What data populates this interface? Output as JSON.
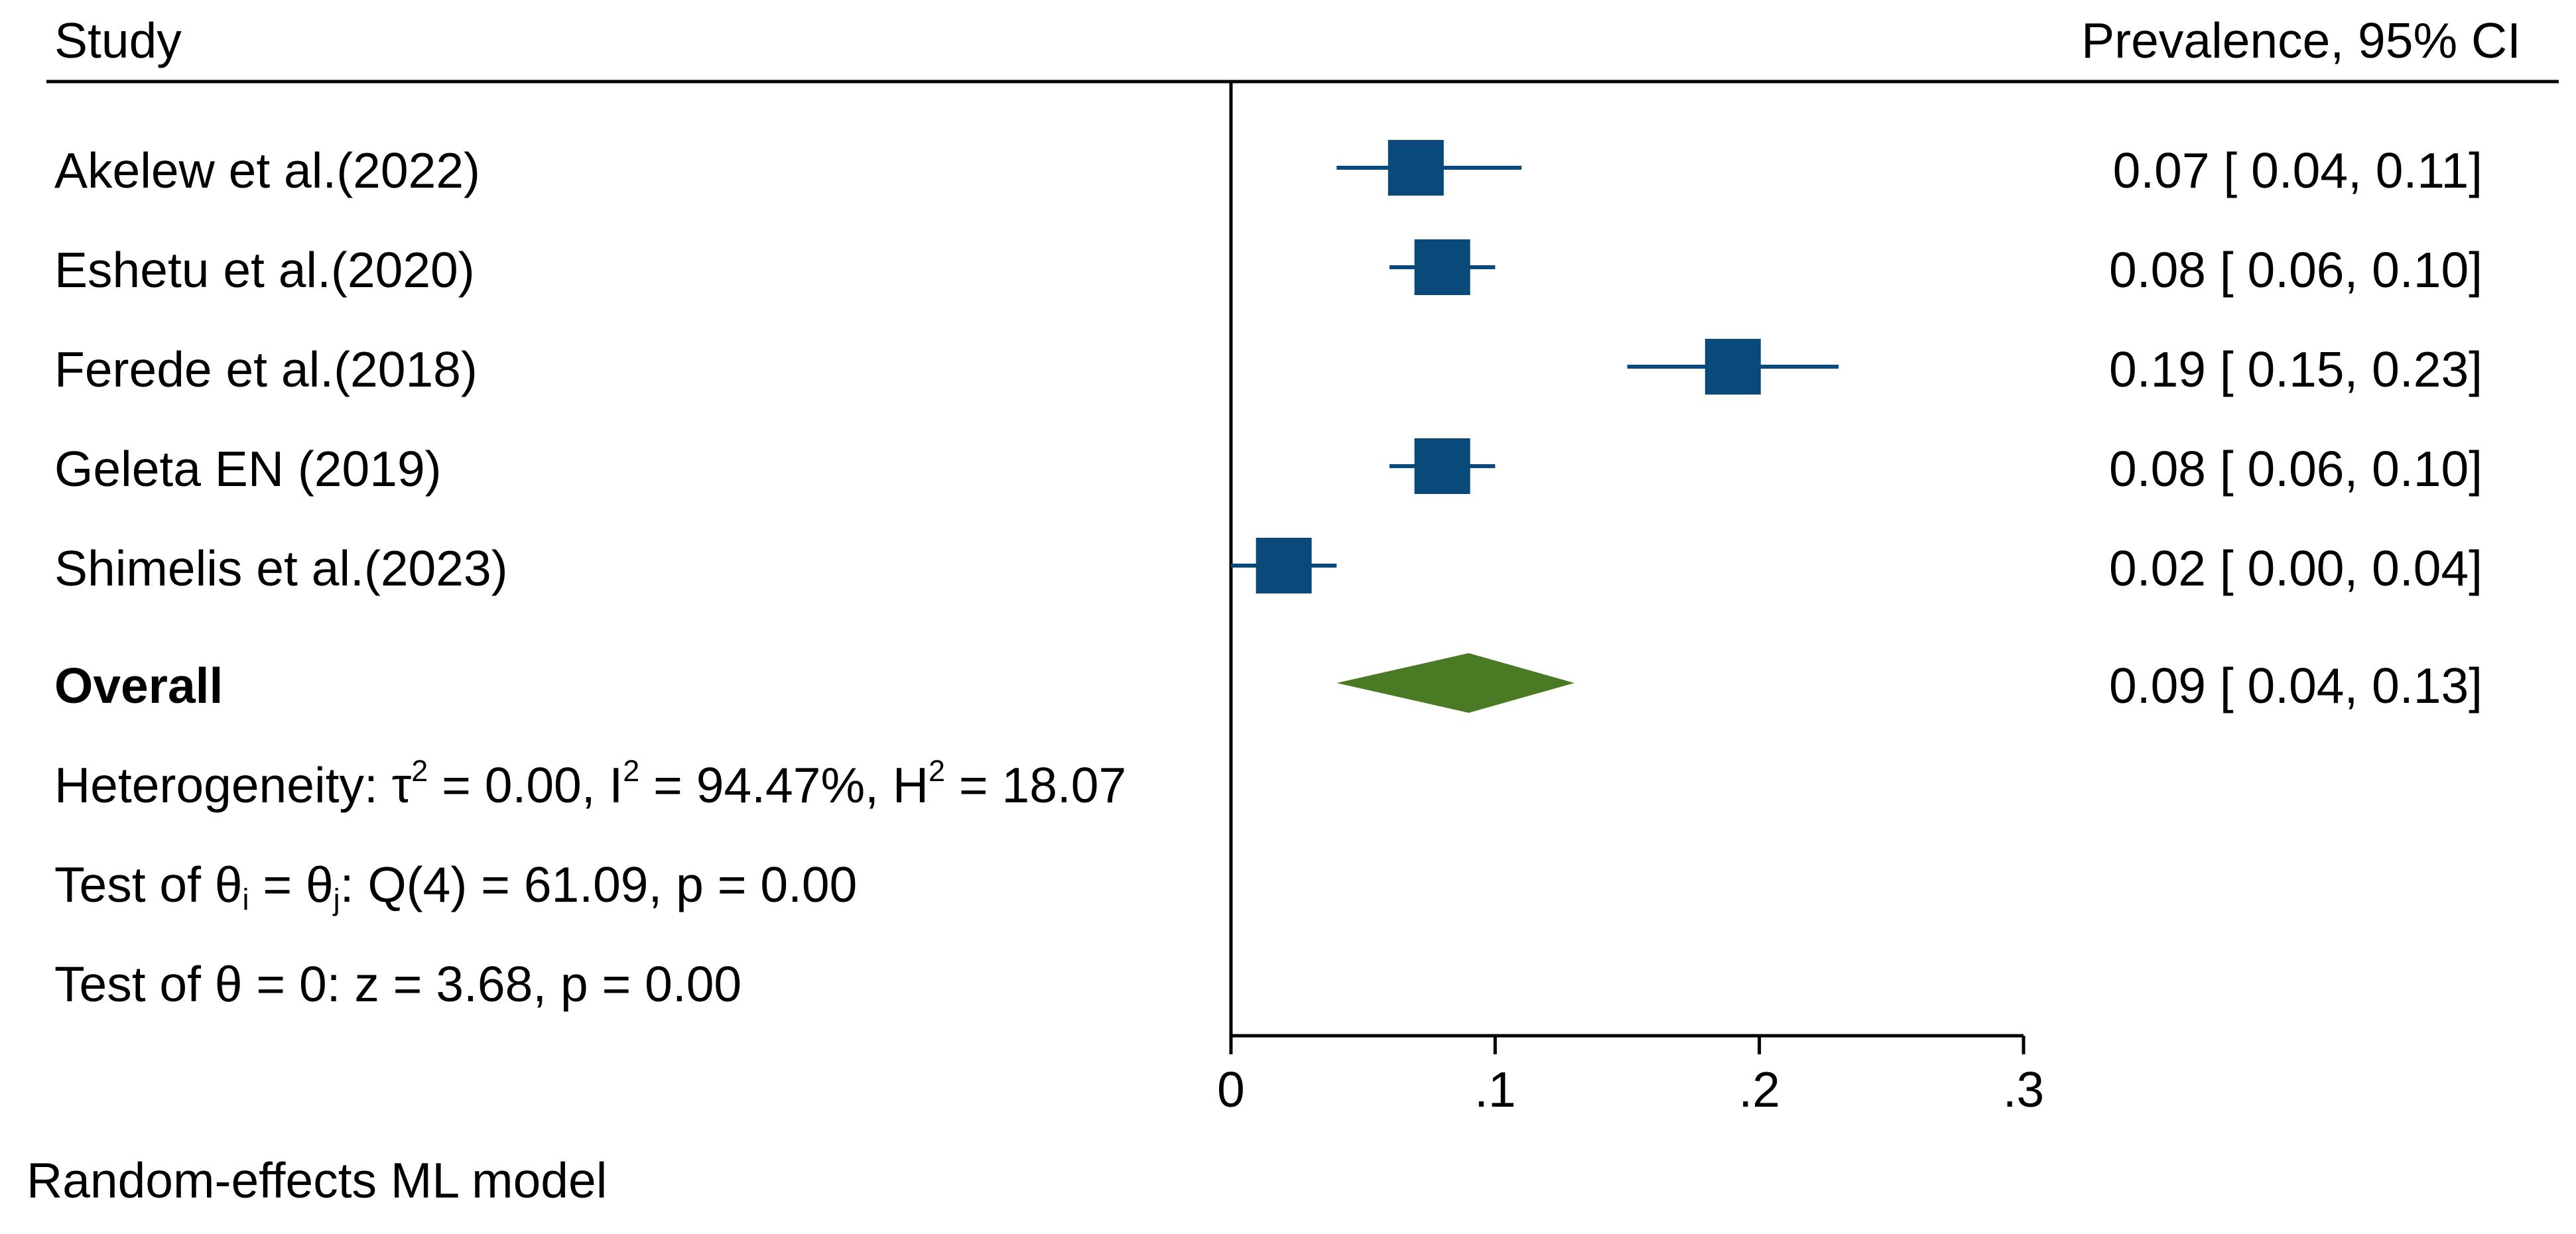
{
  "header": {
    "study_label": "Study",
    "effect_label": "Prevalence,  95% CI"
  },
  "chart_data": {
    "type": "forest",
    "xlabel": "",
    "xlim": [
      0,
      0.3
    ],
    "x_ticks": [
      0,
      0.1,
      0.2,
      0.3
    ],
    "x_tick_labels": [
      "0",
      ".1",
      ".2",
      ".3"
    ],
    "studies": [
      {
        "name": "Akelew et al.(2022)",
        "estimate": 0.07,
        "ci_low": 0.04,
        "ci_high": 0.11,
        "label": "0.07 [ 0.04,  0.11]"
      },
      {
        "name": "Eshetu et al.(2020)",
        "estimate": 0.08,
        "ci_low": 0.06,
        "ci_high": 0.1,
        "label": "0.08 [ 0.06,  0.10]"
      },
      {
        "name": "Ferede et al.(2018)",
        "estimate": 0.19,
        "ci_low": 0.15,
        "ci_high": 0.23,
        "label": "0.19 [ 0.15,  0.23]"
      },
      {
        "name": "Geleta EN (2019)",
        "estimate": 0.08,
        "ci_low": 0.06,
        "ci_high": 0.1,
        "label": "0.08 [ 0.06,  0.10]"
      },
      {
        "name": "Shimelis et al.(2023)",
        "estimate": 0.02,
        "ci_low": 0.0,
        "ci_high": 0.04,
        "label": "0.02 [ 0.00,  0.04]"
      }
    ],
    "overall": {
      "name": "Overall",
      "estimate": 0.09,
      "ci_low": 0.04,
      "ci_high": 0.13,
      "label": "0.09 [ 0.04,  0.13]"
    },
    "colors": {
      "study_marker": "#0a4a7a",
      "overall_marker": "#4a7a24",
      "axis": "#000000"
    }
  },
  "stats": {
    "heterogeneity": {
      "prefix": "Heterogeneity: τ",
      "tau_exp": "2",
      "part2": " = 0.00, I",
      "i_exp": "2",
      "part3": " = 94.47%, H",
      "h_exp": "2",
      "part4": " = 18.07"
    },
    "test_equal": {
      "prefix": "Test of θ",
      "sub_i": "i",
      "mid": " = θ",
      "sub_j": "j",
      "suffix": ": Q(4) = 61.09, p = 0.00"
    },
    "test_zero": "Test of θ = 0: z = 3.68, p = 0.00"
  },
  "footer": {
    "model_note": "Random-effects ML model"
  }
}
